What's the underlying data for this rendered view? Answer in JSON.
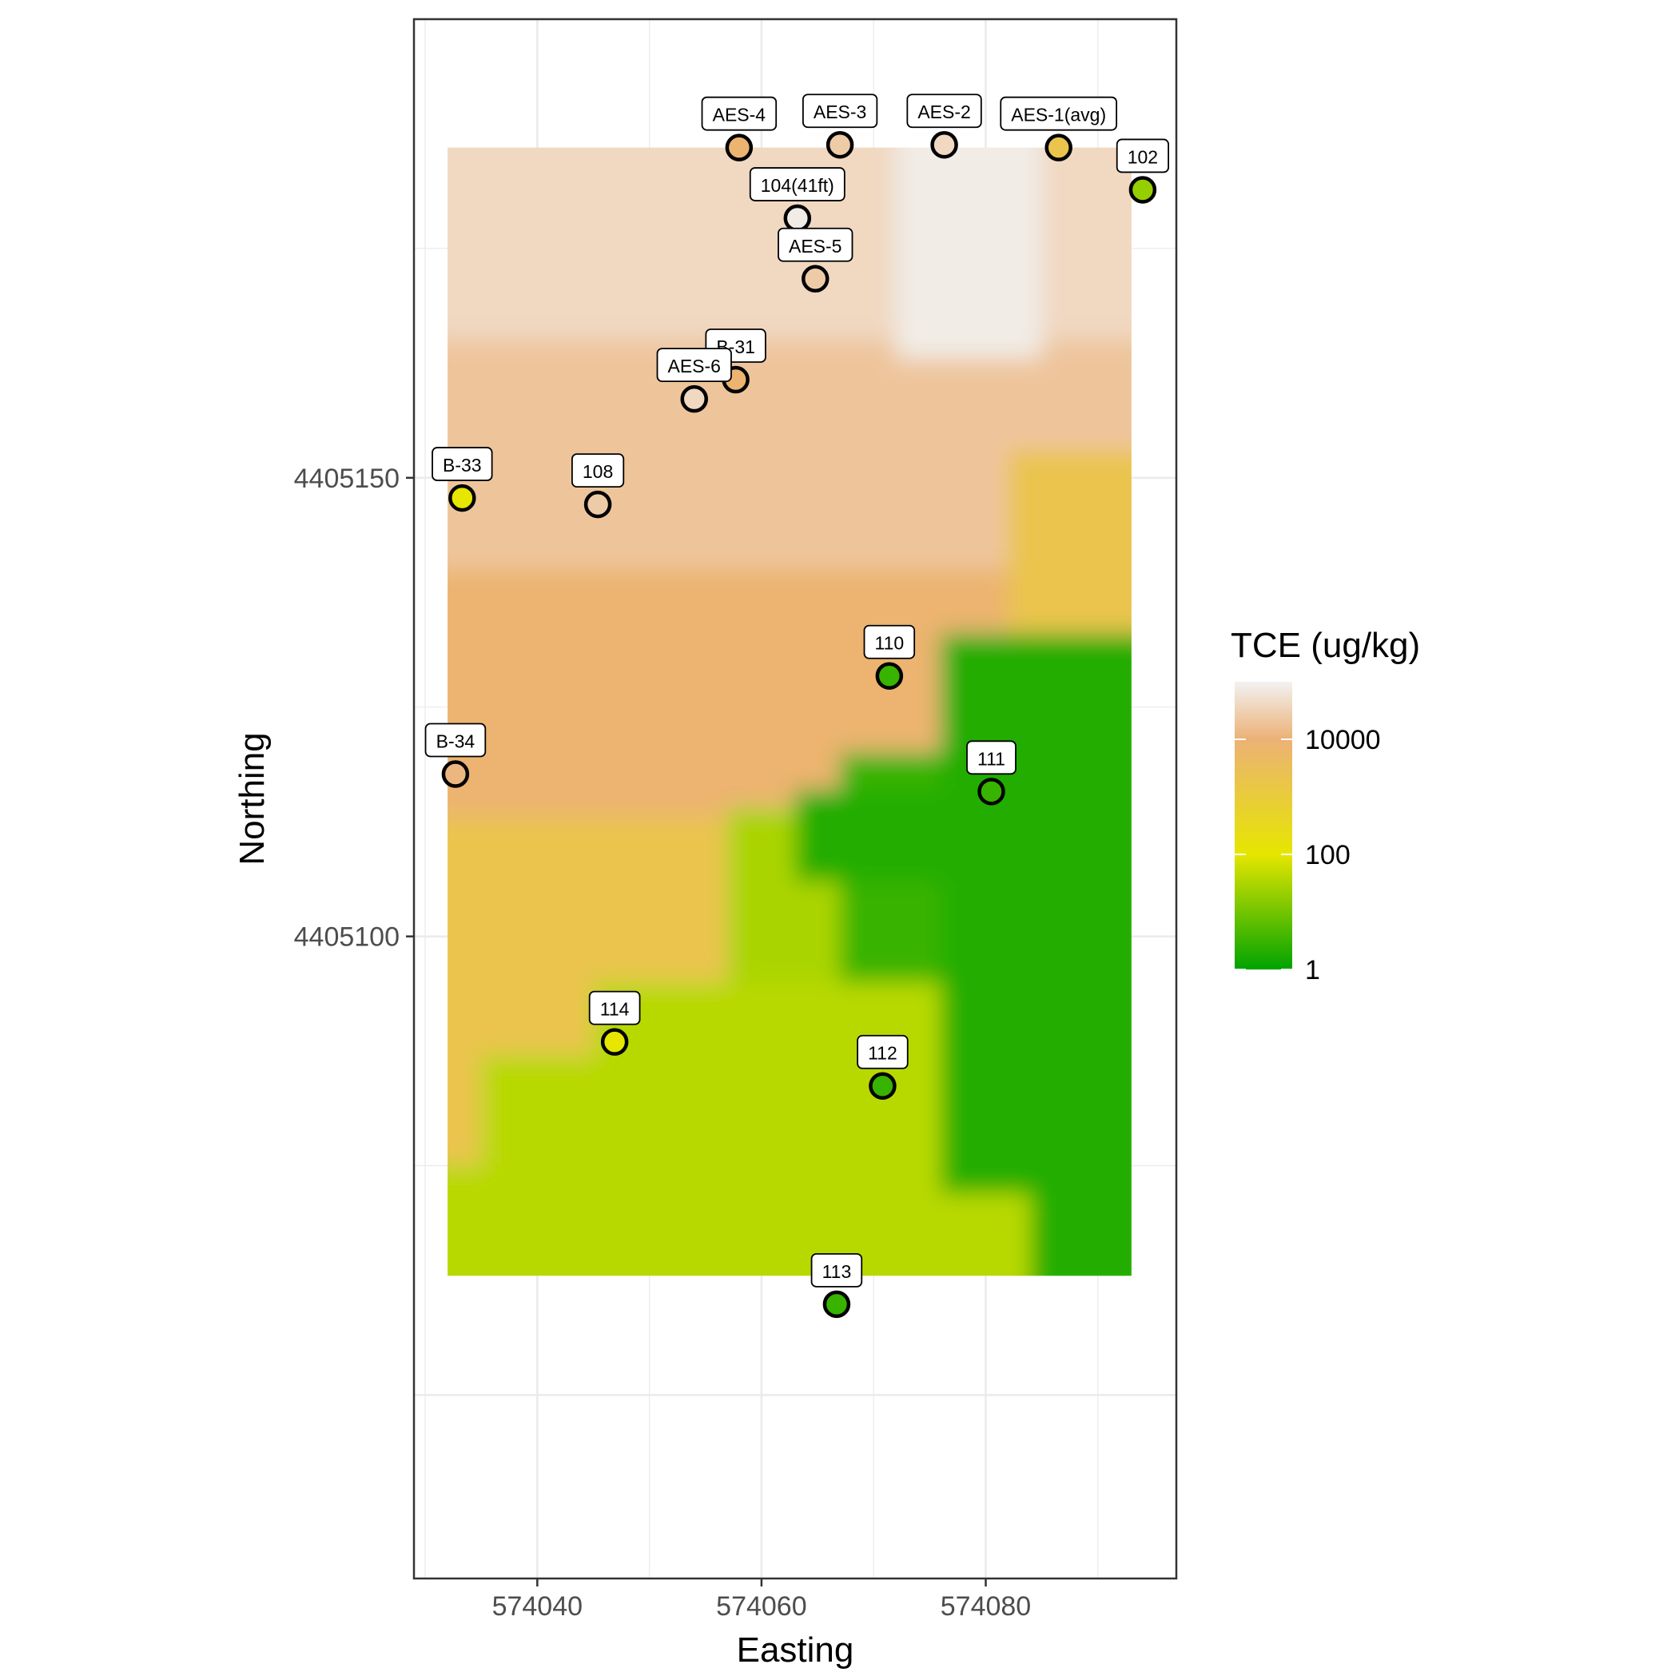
{
  "chart_data": {
    "type": "heatmap",
    "title": "",
    "xlabel": "Easting",
    "ylabel": "Northing",
    "xlim": [
      574029,
      574097
    ],
    "ylim": [
      4405030,
      4405200
    ],
    "x_ticks": [
      574040,
      574060,
      574080
    ],
    "y_ticks": [
      4405100,
      4405150
    ],
    "grid": true,
    "surface_extent": {
      "x": [
        574032,
        574093
      ],
      "y": [
        4405063,
        4405186
      ]
    },
    "color_scale": {
      "type": "log10",
      "stops": [
        {
          "value": 1,
          "color": "#00a300"
        },
        {
          "value": 100,
          "color": "#e6e600"
        },
        {
          "value": 10000,
          "color": "#ecb176"
        },
        {
          "value": 100000,
          "color": "#f2f2f2"
        }
      ]
    },
    "legend": {
      "title": "TCE (ug/kg)",
      "placement": "right",
      "breaks": [
        "1",
        "100",
        "10000"
      ],
      "break_values": [
        1,
        100,
        10000
      ]
    },
    "wells": [
      {
        "label": "AES-4",
        "easting": 574058.0,
        "northing": 4405186.0,
        "tce": 8000
      },
      {
        "label": "AES-3",
        "easting": 574067.0,
        "northing": 4405186.3,
        "tce": 25000
      },
      {
        "label": "AES-2",
        "easting": 574076.3,
        "northing": 4405186.3,
        "tce": 40000
      },
      {
        "label": "AES-1(avg)",
        "easting": 574086.5,
        "northing": 4405186.0,
        "tce": 2000
      },
      {
        "label": "102",
        "easting": 574094.0,
        "northing": 4405181.4,
        "tce": 20
      },
      {
        "label": "104(41ft)",
        "easting": 574063.2,
        "northing": 4405178.3,
        "tce": 80000
      },
      {
        "label": "AES-5",
        "easting": 574064.8,
        "northing": 4405171.7,
        "tce": 25000
      },
      {
        "label": "B-31",
        "easting": 574057.7,
        "northing": 4405160.7,
        "tce": 8000
      },
      {
        "label": "AES-6",
        "easting": 574054.0,
        "northing": 4405158.6,
        "tce": 40000
      },
      {
        "label": "B-33",
        "easting": 574033.3,
        "northing": 4405147.8,
        "tce": 100
      },
      {
        "label": "108",
        "easting": 574045.4,
        "northing": 4405147.1,
        "tce": 25000
      },
      {
        "label": "110",
        "easting": 574071.4,
        "northing": 4405128.4,
        "tce": 3
      },
      {
        "label": "B-34",
        "easting": 574032.7,
        "northing": 4405117.7,
        "tce": 12000
      },
      {
        "label": "111",
        "easting": 574080.5,
        "northing": 4405115.8,
        "tce": 3
      },
      {
        "label": "114",
        "easting": 574046.9,
        "northing": 4405088.5,
        "tce": 100
      },
      {
        "label": "112",
        "easting": 574070.8,
        "northing": 4405083.7,
        "tce": 3
      },
      {
        "label": "113",
        "easting": 574066.7,
        "northing": 4405059.9,
        "tce": 3
      }
    ],
    "surface_regions": [
      {
        "easting": [
          574032,
          574093
        ],
        "northing": [
          4405063,
          4405186
        ],
        "tce": 5000
      },
      {
        "easting": [
          574032,
          574093
        ],
        "northing": [
          4405140,
          4405186
        ],
        "tce": 20000
      },
      {
        "easting": [
          574032,
          574093
        ],
        "northing": [
          4405165,
          4405186
        ],
        "tce": 40000
      },
      {
        "easting": [
          574032,
          574093
        ],
        "northing": [
          4405113,
          4405140
        ],
        "tce": 8000
      },
      {
        "easting": [
          574032,
          574093
        ],
        "northing": [
          4405063,
          4405113
        ],
        "tce": 2000
      },
      {
        "easting": [
          574082,
          574093
        ],
        "northing": [
          4405132,
          4405153
        ],
        "tce": 2000
      },
      {
        "easting": [
          574072,
          574085
        ],
        "northing": [
          4405163,
          4405186
        ],
        "tce": 80000
      },
      {
        "easting": [
          574045,
          574093
        ],
        "northing": [
          4405063,
          4405095
        ],
        "tce": 40
      },
      {
        "easting": [
          574035,
          574045
        ],
        "northing": [
          4405063,
          4405087
        ],
        "tce": 40
      },
      {
        "easting": [
          574032,
          574035
        ],
        "northing": [
          4405063,
          4405075
        ],
        "tce": 40
      },
      {
        "easting": [
          574057,
          574067
        ],
        "northing": [
          4405095,
          4405114
        ],
        "tce": 30
      },
      {
        "easting": [
          574067,
          574076
        ],
        "northing": [
          4405095,
          4405120
        ],
        "tce": 3
      },
      {
        "easting": [
          574076,
          574093
        ],
        "northing": [
          4405072,
          4405133
        ],
        "tce": 2
      },
      {
        "easting": [
          574084,
          574093
        ],
        "northing": [
          4405063,
          4405075
        ],
        "tce": 2
      },
      {
        "easting": [
          574063,
          574076
        ],
        "northing": [
          4405106,
          4405116
        ],
        "tce": 2
      }
    ]
  }
}
